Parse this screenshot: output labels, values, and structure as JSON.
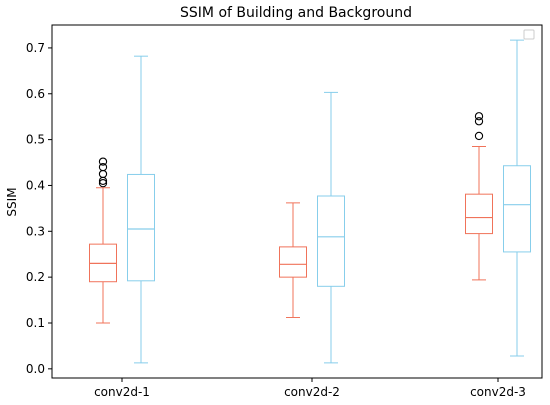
{
  "chart_data": {
    "type": "box",
    "title": "SSIM of Building and Background",
    "xlabel": "",
    "ylabel": "SSIM",
    "ylim": [
      -0.02,
      0.75
    ],
    "yticks": [
      "0.0",
      "0.1",
      "0.2",
      "0.3",
      "0.4",
      "0.5",
      "0.6",
      "0.7"
    ],
    "categories": [
      "conv2d-1",
      "conv2d-2",
      "conv2d-3"
    ],
    "legend": {
      "placement": "top-right",
      "entries": []
    },
    "grid": false,
    "series": [
      {
        "color": "#f0735a",
        "boxes": [
          {
            "whisker_low": 0.1,
            "q1": 0.19,
            "median": 0.23,
            "q3": 0.272,
            "whisker_high": 0.395,
            "outliers": [
              0.405,
              0.41,
              0.425,
              0.44,
              0.452
            ]
          },
          {
            "whisker_low": 0.112,
            "q1": 0.2,
            "median": 0.228,
            "q3": 0.266,
            "whisker_high": 0.362,
            "outliers": []
          },
          {
            "whisker_low": 0.194,
            "q1": 0.295,
            "median": 0.33,
            "q3": 0.381,
            "whisker_high": 0.485,
            "outliers": [
              0.508,
              0.54,
              0.551
            ]
          }
        ]
      },
      {
        "color": "#87ceeb",
        "boxes": [
          {
            "whisker_low": 0.013,
            "q1": 0.192,
            "median": 0.305,
            "q3": 0.424,
            "whisker_high": 0.682,
            "outliers": []
          },
          {
            "whisker_low": 0.013,
            "q1": 0.18,
            "median": 0.288,
            "q3": 0.377,
            "whisker_high": 0.603,
            "outliers": []
          },
          {
            "whisker_low": 0.028,
            "q1": 0.255,
            "median": 0.358,
            "q3": 0.443,
            "whisker_high": 0.717,
            "outliers": []
          }
        ]
      }
    ]
  }
}
